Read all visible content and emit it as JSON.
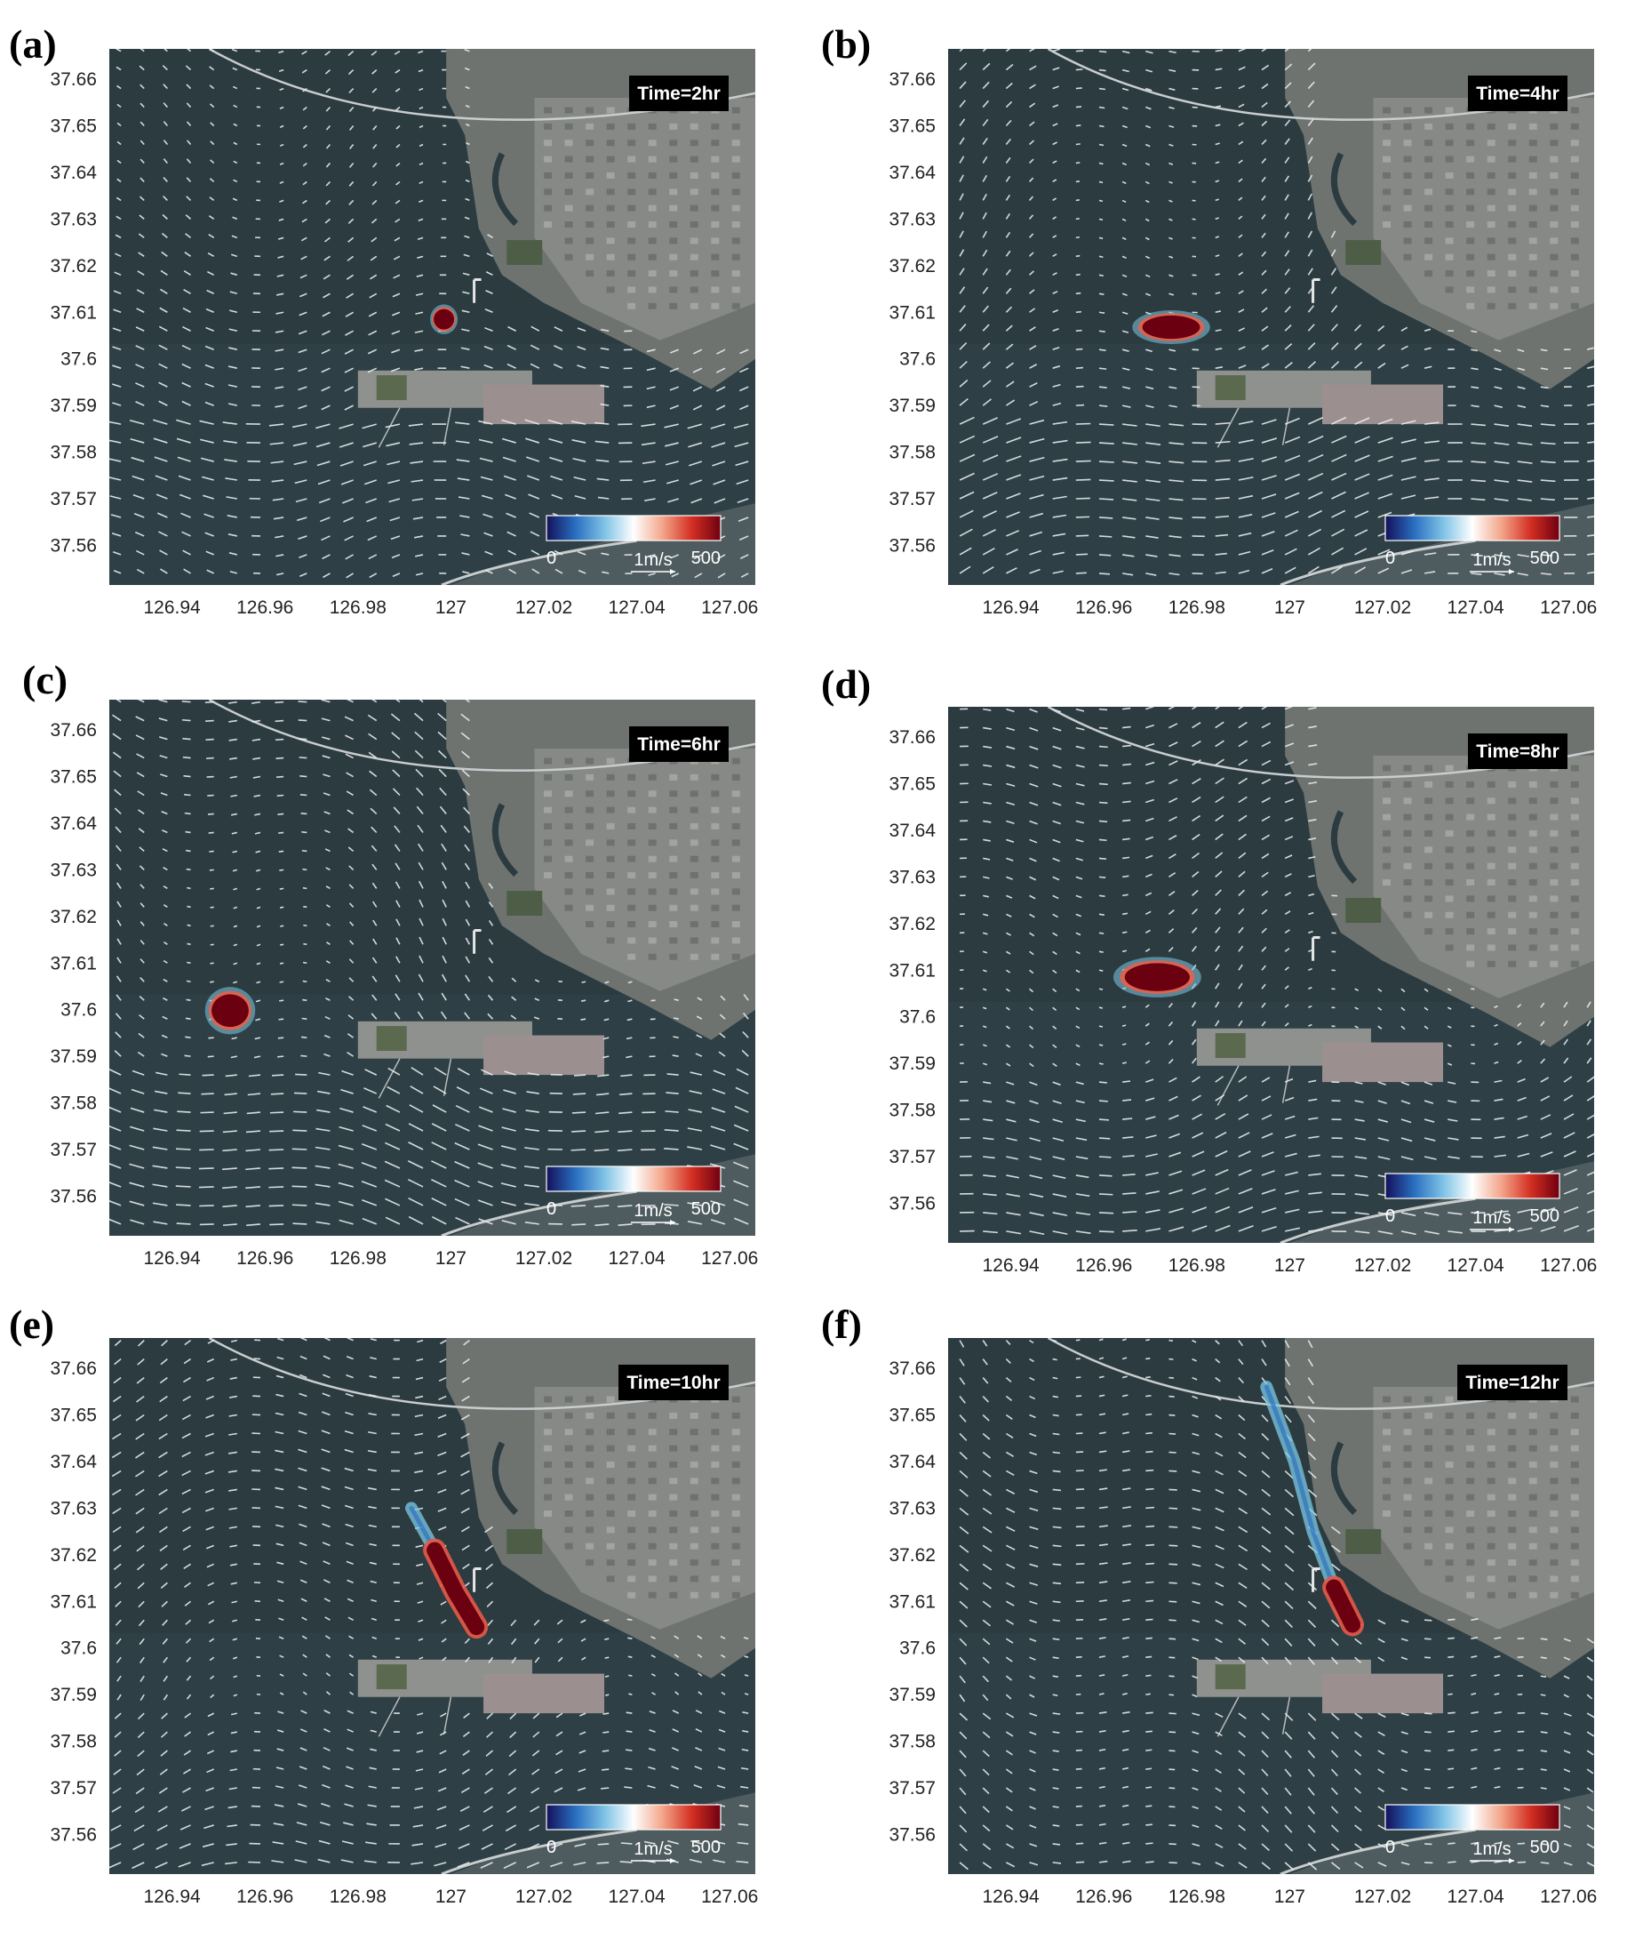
{
  "figure": {
    "panels": [
      {
        "letter": "(a)",
        "time": "Time=2hr",
        "plume": {
          "type": "blob",
          "lon": 126.9985,
          "lat": 37.6085,
          "rx_deg": 0.0022,
          "ry_deg": 0.0022
        }
      },
      {
        "letter": "(b)",
        "time": "Time=4hr",
        "plume": {
          "type": "blob",
          "lon": 126.9745,
          "lat": 37.6068,
          "rx_deg": 0.0062,
          "ry_deg": 0.0025
        }
      },
      {
        "letter": "(c)",
        "time": "Time=6hr",
        "plume": {
          "type": "blob",
          "lon": 126.9525,
          "lat": 37.5998,
          "rx_deg": 0.004,
          "ry_deg": 0.0035
        }
      },
      {
        "letter": "(d)",
        "time": "Time=8hr",
        "plume": {
          "type": "blob",
          "lon": 126.9715,
          "lat": 37.6085,
          "rx_deg": 0.007,
          "ry_deg": 0.003
        }
      },
      {
        "letter": "(e)",
        "time": "Time=10hr",
        "plume": {
          "type": "streak",
          "path": [
            [
              126.9915,
              37.63
            ],
            [
              126.9965,
              37.621
            ],
            [
              127.001,
              37.612
            ],
            [
              127.0055,
              37.6045
            ]
          ],
          "core_from": 1
        }
      },
      {
        "letter": "(f)",
        "time": "Time=12hr",
        "plume": {
          "type": "streak",
          "path": [
            [
              126.995,
              37.656
            ],
            [
              127.001,
              37.64
            ],
            [
              127.005,
              37.625
            ],
            [
              127.0095,
              37.613
            ],
            [
              127.0135,
              37.605
            ]
          ],
          "core_from": 3
        }
      }
    ],
    "axes": {
      "x_ticks": [
        "126.94",
        "126.96",
        "126.98",
        "127",
        "127.02",
        "127.04",
        "127.06"
      ],
      "x_values": [
        126.94,
        126.96,
        126.98,
        127.0,
        127.02,
        127.04,
        127.06
      ],
      "y_ticks": [
        "37.66",
        "37.65",
        "37.64",
        "37.63",
        "37.62",
        "37.61",
        "37.6",
        "37.59",
        "37.58",
        "37.57",
        "37.56"
      ],
      "y_values": [
        37.66,
        37.65,
        37.64,
        37.63,
        37.62,
        37.61,
        37.6,
        37.59,
        37.58,
        37.57,
        37.56
      ],
      "x_range": [
        126.9265,
        127.0655
      ],
      "y_range": [
        37.5515,
        37.6665
      ]
    },
    "colorbar": {
      "min_label": "0",
      "max_label": "500",
      "scale_label": "1m/s",
      "colors": [
        "#14105a",
        "#2a6fc0",
        "#7fc3e6",
        "#ffffff",
        "#f3a58a",
        "#d42f22",
        "#6e0010"
      ]
    },
    "map_colors": {
      "water": "#2b3b40",
      "land": "#6f7370",
      "city": "#8c8f8b",
      "plume_core": "#6b0010",
      "plume_halo": "#7ccbe6",
      "arrow": "#e8ecee"
    }
  }
}
